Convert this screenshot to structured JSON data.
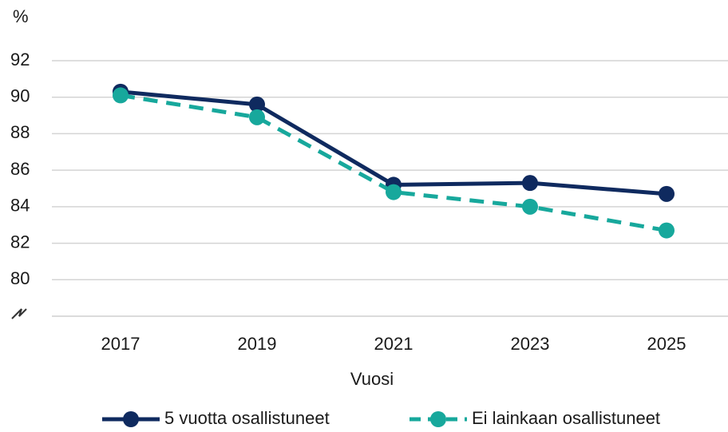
{
  "chart_data": {
    "type": "line",
    "y_label": "%",
    "x_label": "Vuosi",
    "categories": [
      "2017",
      "2019",
      "2021",
      "2023",
      "2025"
    ],
    "series": [
      {
        "name": "5 vuotta osallistuneet",
        "color": "#0f2a5f",
        "line_style": "solid",
        "values": [
          90.3,
          89.6,
          85.2,
          85.3,
          84.7
        ]
      },
      {
        "name": "Ei lainkaan osallistuneet",
        "color": "#17a89c",
        "line_style": "dashed",
        "values": [
          90.1,
          88.9,
          84.8,
          84.0,
          82.7
        ]
      }
    ],
    "ylim": [
      78,
      92
    ],
    "yticks": [
      80,
      82,
      84,
      86,
      88,
      90,
      92
    ],
    "grid": true,
    "legend": "bottom"
  }
}
